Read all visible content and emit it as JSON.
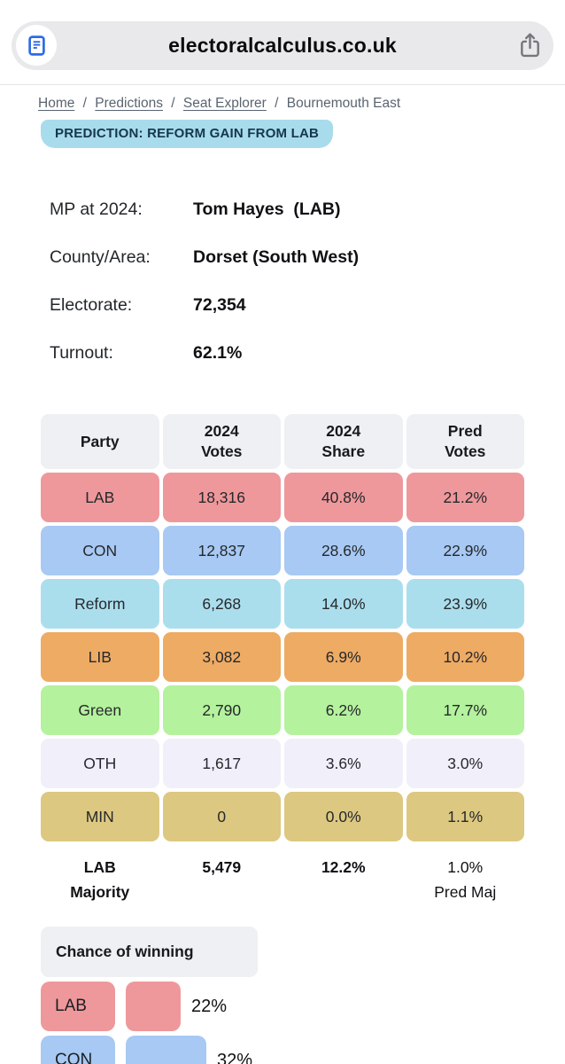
{
  "browser": {
    "url": "electoralcalculus.co.uk",
    "pill_color": "#e9e9ec",
    "reader_icon_color": "#2e6be5",
    "share_icon_color": "#76767b"
  },
  "breadcrumb": {
    "separator": "/",
    "items": [
      {
        "label": "Home",
        "is_link": true
      },
      {
        "label": "Predictions",
        "is_link": true
      },
      {
        "label": "Seat Explorer",
        "is_link": true
      },
      {
        "label": "Bournemouth East",
        "is_link": false
      }
    ]
  },
  "prediction_banner": {
    "text": "PREDICTION: REFORM GAIN FROM LAB",
    "bg_color": "#a8dcec",
    "text_color": "#16364d"
  },
  "seat_info": {
    "rows": [
      {
        "label": "MP at 2024:",
        "value": "Tom Hayes  (LAB)"
      },
      {
        "label": "County/Area:",
        "value": "Dorset (South West)"
      },
      {
        "label": "Electorate:",
        "value": "72,354"
      },
      {
        "label": "Turnout:",
        "value": "62.1%"
      }
    ]
  },
  "results_table": {
    "headers": [
      "Party",
      "2024\nVotes",
      "2024\nShare",
      "Pred\nVotes"
    ],
    "header_bg": "#eef0f3",
    "rows": [
      {
        "party": "LAB",
        "votes_2024": "18,316",
        "share_2024": "40.8%",
        "pred_votes": "21.2%",
        "color": "#ee989b"
      },
      {
        "party": "CON",
        "votes_2024": "12,837",
        "share_2024": "28.6%",
        "pred_votes": "22.9%",
        "color": "#a7c9f3"
      },
      {
        "party": "Reform",
        "votes_2024": "6,268",
        "share_2024": "14.0%",
        "pred_votes": "23.9%",
        "color": "#abdeed"
      },
      {
        "party": "LIB",
        "votes_2024": "3,082",
        "share_2024": "6.9%",
        "pred_votes": "10.2%",
        "color": "#eeab64"
      },
      {
        "party": "Green",
        "votes_2024": "2,790",
        "share_2024": "6.2%",
        "pred_votes": "17.7%",
        "color": "#b4f29d"
      },
      {
        "party": "OTH",
        "votes_2024": "1,617",
        "share_2024": "3.6%",
        "pred_votes": "3.0%",
        "color": "#f1eff9"
      },
      {
        "party": "MIN",
        "votes_2024": "0",
        "share_2024": "0.0%",
        "pred_votes": "1.1%",
        "color": "#dcc880"
      }
    ],
    "majority": {
      "party_label": "LAB\nMajority",
      "votes": "5,479",
      "share": "12.2%",
      "pred": "1.0%\nPred Maj"
    }
  },
  "chance_of_winning": {
    "title": "Chance of winning",
    "rows": [
      {
        "party": "LAB",
        "pct": 22,
        "pct_label": "22%",
        "color": "#ee989b"
      },
      {
        "party": "CON",
        "pct": 32,
        "pct_label": "32%",
        "color": "#a7c9f3"
      }
    ]
  }
}
